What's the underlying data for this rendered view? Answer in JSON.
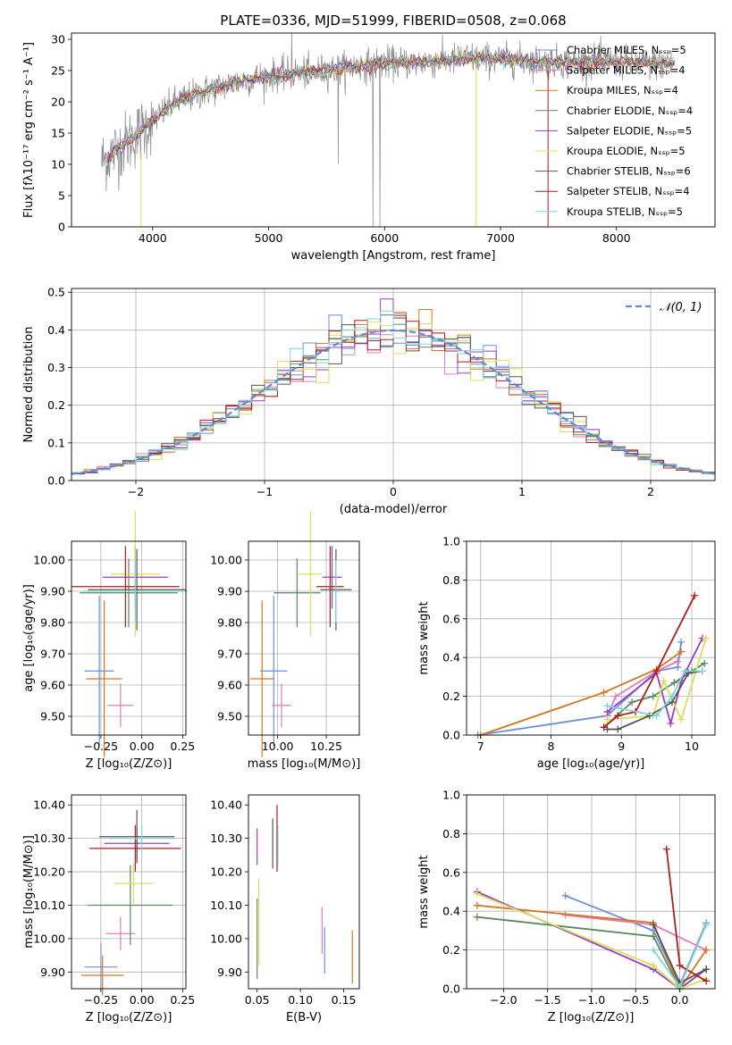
{
  "chart_data": [
    {
      "id": "spectrum",
      "type": "line",
      "title": "PLATE=0336, MJD=51999, FIBERID=0508, z=0.068",
      "xlabel": "wavelength [Angstrom, rest frame]",
      "ylabel": "Flux [fλ10⁻¹⁷ erg cm⁻² s⁻¹ A⁻¹]",
      "xlim": [
        3300,
        8850
      ],
      "ylim": [
        0,
        31
      ],
      "xticks": [
        4000,
        5000,
        6000,
        7000,
        8000
      ],
      "yticks": [
        0,
        5,
        10,
        15,
        20,
        25,
        30
      ],
      "grid": false,
      "legend_position": "upper right",
      "continuum": {
        "x": [
          3560,
          3700,
          3850,
          4000,
          4200,
          4500,
          4800,
          5000,
          5200,
          5500,
          5800,
          6000,
          6300,
          6500,
          6700,
          7000,
          7300,
          7600,
          7900,
          8200,
          8500
        ],
        "y": [
          10.5,
          12.5,
          14.5,
          17.0,
          20.0,
          22.0,
          23.5,
          24.2,
          24.5,
          25.0,
          25.8,
          26.2,
          26.3,
          26.5,
          27.0,
          26.8,
          26.5,
          26.3,
          26.5,
          26.2,
          26.0
        ]
      },
      "series": [
        {
          "name": "Chabrier MILES, Nₛₛₚ=5",
          "color": "#6c8ed8"
        },
        {
          "name": "Salpeter MILES, Nₛₛₚ=4",
          "color": "#e07cc0"
        },
        {
          "name": "Kroupa MILES, Nₛₛₚ=4",
          "color": "#d5761e"
        },
        {
          "name": "Chabrier ELODIE, Nₛₛₚ=4",
          "color": "#5a8a62"
        },
        {
          "name": "Salpeter ELODIE, Nₛₛₚ=5",
          "color": "#9b3fc0"
        },
        {
          "name": "Kroupa ELODIE, Nₛₛₚ=5",
          "color": "#d8e05a"
        },
        {
          "name": "Chabrier STELIB, Nₛₛₚ=6",
          "color": "#555555"
        },
        {
          "name": "Salpeter STELIB, Nₛₛₚ=4",
          "color": "#b01c1c"
        },
        {
          "name": "Kroupa STELIB, Nₛₛₚ=5",
          "color": "#7fd5d5"
        }
      ]
    },
    {
      "id": "residuals",
      "type": "histogram",
      "xlabel": "(data-model)/error",
      "ylabel": "Normed distribution",
      "xlim": [
        -2.5,
        2.5
      ],
      "ylim": [
        0,
        0.51
      ],
      "xticks": [
        -2,
        -1,
        0,
        1,
        2
      ],
      "xtick_labels": [
        "−2",
        "−1",
        "0",
        "1",
        "2"
      ],
      "yticks": [
        0.0,
        0.1,
        0.2,
        0.3,
        0.4,
        0.5
      ],
      "grid": true,
      "legend_position": "upper right",
      "reference_curve": {
        "name": "𝒩(0, 1)",
        "color": "#5b8ad8",
        "style": "dashed"
      },
      "bins": 50
    },
    {
      "id": "age-vs-Z",
      "type": "errorbar",
      "xlabel": "Z [log₁₀(Z/Z⊙)]",
      "ylabel": "age  [log₁₀(age/yr)]",
      "xlim": [
        -0.43,
        0.27
      ],
      "ylim": [
        9.44,
        10.06
      ],
      "xticks": [
        -0.25,
        0.0,
        0.25
      ],
      "xtick_labels": [
        "−0.25",
        "0.00",
        "0.25"
      ],
      "yticks": [
        9.5,
        9.6,
        9.7,
        9.8,
        9.9,
        10.0
      ],
      "grid": true,
      "points": [
        {
          "c": "#6c8ed8",
          "x": -0.26,
          "y": 9.645,
          "xerr": 0.09,
          "yerr": 0.24
        },
        {
          "c": "#e07cc0",
          "x": -0.13,
          "y": 9.535,
          "xerr": 0.08,
          "yerr": 0.07
        },
        {
          "c": "#d5761e",
          "x": -0.23,
          "y": 9.62,
          "xerr": 0.11,
          "yerr": 0.25
        },
        {
          "c": "#5a8a62",
          "x": -0.08,
          "y": 9.895,
          "xerr": 0.3,
          "yerr": 0.11
        },
        {
          "c": "#9b3fc0",
          "x": -0.04,
          "y": 9.945,
          "xerr": 0.2,
          "yerr": 0.1
        },
        {
          "c": "#d8e05a",
          "x": -0.04,
          "y": 9.955,
          "xerr": 0.15,
          "yerr": 0.2
        },
        {
          "c": "#555555",
          "x": -0.03,
          "y": 9.905,
          "xerr": 0.3,
          "yerr": 0.13
        },
        {
          "c": "#b01c1c",
          "x": -0.1,
          "y": 9.915,
          "xerr": 0.33,
          "yerr": 0.13
        },
        {
          "c": "#7fd5d5",
          "x": -0.04,
          "y": 9.9,
          "xerr": 0.32,
          "yerr": 0.1
        }
      ]
    },
    {
      "id": "age-vs-mass",
      "type": "errorbar",
      "xlabel": "mass [log₁₀(M/M⊙)]",
      "ylabel": "",
      "xlim": [
        9.85,
        10.42
      ],
      "ylim": [
        9.44,
        10.06
      ],
      "xticks": [
        10.0,
        10.25
      ],
      "xtick_labels": [
        "10.00",
        "10.25"
      ],
      "yticks": [
        9.5,
        9.6,
        9.7,
        9.8,
        9.9,
        10.0
      ],
      "grid": true,
      "points": [
        {
          "c": "#6c8ed8",
          "x": 9.98,
          "y": 9.645,
          "xerr": 0.07,
          "yerr": 0.24
        },
        {
          "c": "#e07cc0",
          "x": 10.02,
          "y": 9.535,
          "xerr": 0.05,
          "yerr": 0.07
        },
        {
          "c": "#d5761e",
          "x": 9.92,
          "y": 9.62,
          "xerr": 0.06,
          "yerr": 0.25
        },
        {
          "c": "#5a8a62",
          "x": 10.1,
          "y": 9.895,
          "xerr": 0.12,
          "yerr": 0.11
        },
        {
          "c": "#9b3fc0",
          "x": 10.28,
          "y": 9.945,
          "xerr": 0.05,
          "yerr": 0.1
        },
        {
          "c": "#d8e05a",
          "x": 10.17,
          "y": 9.955,
          "xerr": 0.06,
          "yerr": 0.2
        },
        {
          "c": "#555555",
          "x": 10.3,
          "y": 9.905,
          "xerr": 0.08,
          "yerr": 0.13
        },
        {
          "c": "#b01c1c",
          "x": 10.27,
          "y": 9.915,
          "xerr": 0.07,
          "yerr": 0.13
        },
        {
          "c": "#7fd5d5",
          "x": 10.3,
          "y": 9.9,
          "xerr": 0.02,
          "yerr": 0.1
        }
      ]
    },
    {
      "id": "mass-weight-vs-age",
      "type": "line",
      "xlabel": "age  [log₁₀(age/yr)]",
      "ylabel": "mass weight",
      "xlim": [
        6.8,
        10.33
      ],
      "ylim": [
        0,
        1.0
      ],
      "xticks": [
        7,
        8,
        9,
        10
      ],
      "yticks": [
        0.0,
        0.2,
        0.4,
        0.6,
        0.8,
        1.0
      ],
      "grid": true,
      "series": [
        {
          "c": "#6c8ed8",
          "x": [
            6.96,
            8.8,
            9.5,
            9.8,
            9.85
          ],
          "y": [
            0.0,
            0.1,
            0.33,
            0.35,
            0.48
          ]
        },
        {
          "c": "#e07cc0",
          "x": [
            8.8,
            8.92,
            9.5,
            9.8
          ],
          "y": [
            0.1,
            0.2,
            0.33,
            0.38
          ]
        },
        {
          "c": "#d5761e",
          "x": [
            7.0,
            8.75,
            9.5,
            9.85
          ],
          "y": [
            0.0,
            0.22,
            0.34,
            0.43
          ]
        },
        {
          "c": "#5a8a62",
          "x": [
            8.75,
            9.15,
            9.45,
            9.75,
            10.0,
            10.18
          ],
          "y": [
            0.04,
            0.17,
            0.2,
            0.27,
            0.33,
            0.37
          ]
        },
        {
          "c": "#9b3fc0",
          "x": [
            8.8,
            9.5,
            9.7,
            9.85,
            10.15
          ],
          "y": [
            0.12,
            0.32,
            0.06,
            0.28,
            0.5
          ]
        },
        {
          "c": "#d8e05a",
          "x": [
            8.8,
            9.45,
            9.6,
            9.85,
            10.2
          ],
          "y": [
            0.08,
            0.1,
            0.28,
            0.08,
            0.5
          ]
        },
        {
          "c": "#555555",
          "x": [
            8.8,
            8.95,
            9.4,
            9.72,
            9.95,
            10.15
          ],
          "y": [
            0.03,
            0.03,
            0.1,
            0.17,
            0.32,
            0.33
          ]
        },
        {
          "c": "#b01c1c",
          "x": [
            8.75,
            8.95,
            9.2,
            9.5,
            10.04
          ],
          "y": [
            0.04,
            0.1,
            0.12,
            0.33,
            0.72
          ]
        },
        {
          "c": "#7fd5d5",
          "x": [
            8.8,
            9.5,
            9.72,
            9.9,
            10.15
          ],
          "y": [
            0.15,
            0.1,
            0.2,
            0.33,
            0.33
          ]
        }
      ]
    },
    {
      "id": "mass-vs-Z",
      "type": "errorbar",
      "xlabel": "Z [log₁₀(Z/Z⊙)]",
      "ylabel": "mass [log₁₀(M/M⊙)]",
      "xlim": [
        -0.43,
        0.27
      ],
      "ylim": [
        9.85,
        10.43
      ],
      "xticks": [
        -0.25,
        0.0,
        0.25
      ],
      "xtick_labels": [
        "−0.25",
        "0.00",
        "0.25"
      ],
      "yticks": [
        9.9,
        10.0,
        10.1,
        10.2,
        10.3,
        10.4
      ],
      "grid": true,
      "points": [
        {
          "c": "#6c8ed8",
          "x": -0.25,
          "y": 9.915,
          "xerr": 0.1,
          "yerr": 0.07
        },
        {
          "c": "#e07cc0",
          "x": -0.13,
          "y": 10.015,
          "xerr": 0.09,
          "yerr": 0.05
        },
        {
          "c": "#d5761e",
          "x": -0.24,
          "y": 9.89,
          "xerr": 0.13,
          "yerr": 0.06
        },
        {
          "c": "#5a8a62",
          "x": -0.07,
          "y": 10.1,
          "xerr": 0.26,
          "yerr": 0.12
        },
        {
          "c": "#9b3fc0",
          "x": -0.03,
          "y": 10.285,
          "xerr": 0.2,
          "yerr": 0.05
        },
        {
          "c": "#d8e05a",
          "x": -0.05,
          "y": 10.165,
          "xerr": 0.12,
          "yerr": 0.06
        },
        {
          "c": "#555555",
          "x": -0.03,
          "y": 10.305,
          "xerr": 0.23,
          "yerr": 0.08
        },
        {
          "c": "#b01c1c",
          "x": -0.04,
          "y": 10.27,
          "xerr": 0.28,
          "yerr": 0.07
        },
        {
          "c": "#7fd5d5",
          "x": 0.0,
          "y": 10.3,
          "xerr": 0.2,
          "yerr": 0.04
        }
      ]
    },
    {
      "id": "mass-vs-ebv",
      "type": "errorbar",
      "xlabel": "E(B-V)",
      "ylabel": "",
      "xlim": [
        0.04,
        0.168
      ],
      "ylim": [
        9.85,
        10.43
      ],
      "xticks": [
        0.05,
        0.1,
        0.15
      ],
      "xtick_labels": [
        "0.05",
        "0.10",
        "0.15"
      ],
      "yticks": [
        9.9,
        10.0,
        10.1,
        10.2,
        10.3,
        10.4
      ],
      "grid": false,
      "points": [
        {
          "c": "#6c8ed8",
          "x": 0.128,
          "y": 9.965,
          "xerr": 0,
          "yerr": 0.07
        },
        {
          "c": "#e07cc0",
          "x": 0.125,
          "y": 10.025,
          "xerr": 0,
          "yerr": 0.07
        },
        {
          "c": "#d5761e",
          "x": 0.16,
          "y": 9.945,
          "xerr": 0,
          "yerr": 0.08
        },
        {
          "c": "#5a8a62",
          "x": 0.05,
          "y": 10.0,
          "xerr": 0,
          "yerr": 0.12
        },
        {
          "c": "#9b3fc0",
          "x": 0.05,
          "y": 10.275,
          "xerr": 0,
          "yerr": 0.055
        },
        {
          "c": "#d8e05a",
          "x": 0.052,
          "y": 10.05,
          "xerr": 0,
          "yerr": 0.13
        },
        {
          "c": "#555555",
          "x": 0.068,
          "y": 10.285,
          "xerr": 0,
          "yerr": 0.075
        },
        {
          "c": "#b01c1c",
          "x": 0.073,
          "y": 10.3,
          "xerr": 0,
          "yerr": 0.1
        },
        {
          "c": "#7fd5d5",
          "x": 0.074,
          "y": 10.28,
          "xerr": 0,
          "yerr": 0.06
        }
      ]
    },
    {
      "id": "mass-weight-vs-Z",
      "type": "line",
      "xlabel": "Z [log₁₀(Z/Z⊙)]",
      "ylabel": "mass weight",
      "xlim": [
        -2.42,
        0.4
      ],
      "ylim": [
        0,
        1.0
      ],
      "xticks": [
        -2.0,
        -1.5,
        -1.0,
        -0.5,
        0.0
      ],
      "xtick_labels": [
        "−2.0",
        "−1.5",
        "−1.0",
        "−0.5",
        "0.0"
      ],
      "yticks": [
        0.0,
        0.2,
        0.4,
        0.6,
        0.8,
        1.0
      ],
      "grid": true,
      "series": [
        {
          "c": "#6c8ed8",
          "x": [
            -1.3,
            -0.3,
            0.0,
            0.3
          ],
          "y": [
            0.48,
            0.3,
            0.02,
            0.34
          ]
        },
        {
          "c": "#e07cc0",
          "x": [
            -1.3,
            -0.3,
            0.3
          ],
          "y": [
            0.38,
            0.33,
            0.2
          ]
        },
        {
          "c": "#d5761e",
          "x": [
            -2.3,
            -0.3,
            0.0,
            0.3
          ],
          "y": [
            0.43,
            0.34,
            0.0,
            0.2
          ]
        },
        {
          "c": "#5a8a62",
          "x": [
            -2.3,
            -0.3,
            0.0,
            0.3
          ],
          "y": [
            0.37,
            0.27,
            0.0,
            0.1
          ]
        },
        {
          "c": "#9b3fc0",
          "x": [
            -2.3,
            -0.3,
            0.0,
            0.3
          ],
          "y": [
            0.5,
            0.1,
            0.0,
            0.1
          ]
        },
        {
          "c": "#d8e05a",
          "x": [
            -2.3,
            -0.3,
            0.0,
            0.3
          ],
          "y": [
            0.49,
            0.12,
            0.0,
            0.05
          ]
        },
        {
          "c": "#555555",
          "x": [
            -0.3,
            0.0,
            0.3
          ],
          "y": [
            0.33,
            0.03,
            0.1
          ]
        },
        {
          "c": "#b01c1c",
          "x": [
            -0.15,
            0.0,
            0.3
          ],
          "y": [
            0.72,
            0.12,
            0.04
          ]
        },
        {
          "c": "#7fd5d5",
          "x": [
            -0.3,
            0.0,
            0.3
          ],
          "y": [
            0.2,
            0.01,
            0.33
          ]
        }
      ]
    }
  ]
}
